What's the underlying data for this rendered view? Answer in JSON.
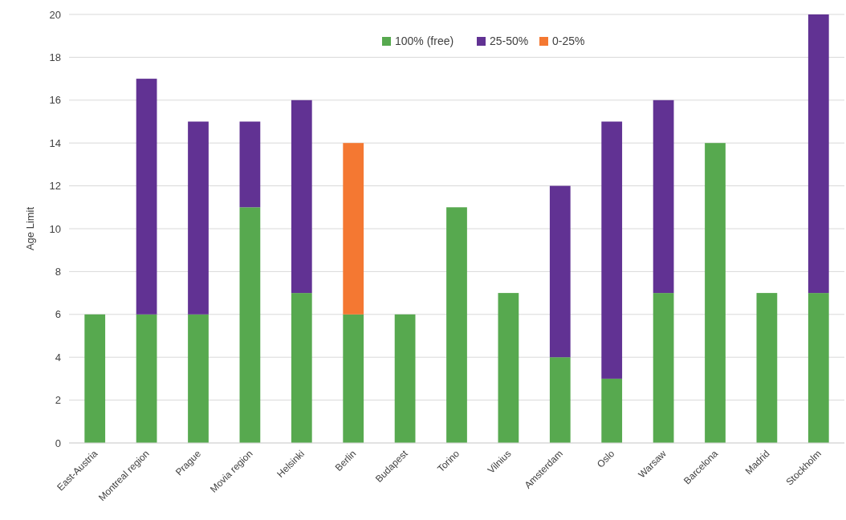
{
  "chart_data": {
    "type": "bar",
    "stacked": true,
    "ylabel": "Age Limit",
    "categories": [
      "East-Austria",
      "Montreal region",
      "Prague",
      "Movia region",
      "Helsinki",
      "Berlin",
      "Budapest",
      "Torino",
      "Vilnius",
      "Amsterdam",
      "Oslo",
      "Warsaw",
      "Barcelona",
      "Madrid",
      "Stockholm"
    ],
    "series": [
      {
        "name": "100% (free)",
        "color": "#57a94f",
        "values": [
          6,
          6,
          6,
          11,
          7,
          6,
          6,
          11,
          7,
          4,
          3,
          7,
          14,
          7,
          7
        ]
      },
      {
        "name": "25-50%",
        "color": "#613293",
        "values": [
          null,
          11,
          9,
          4,
          9,
          null,
          null,
          null,
          null,
          8,
          12,
          9,
          null,
          null,
          13
        ]
      },
      {
        "name": "0-25%",
        "color": "#f47832",
        "values": [
          null,
          null,
          null,
          null,
          null,
          8,
          null,
          null,
          null,
          null,
          null,
          null,
          null,
          null,
          null
        ]
      }
    ],
    "ylim": [
      0,
      20
    ],
    "yticks": [
      0,
      2,
      4,
      6,
      8,
      10,
      12,
      14,
      16,
      18,
      20
    ],
    "grid": "y",
    "legend": "top"
  }
}
